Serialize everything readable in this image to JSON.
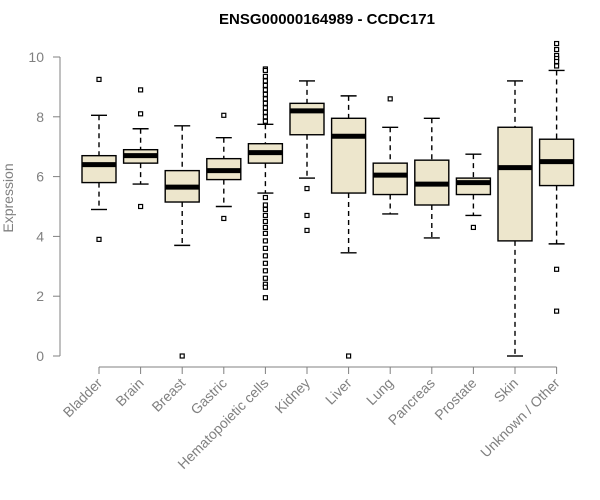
{
  "chart_data": {
    "type": "boxplot",
    "title": "ENSG00000164989 - CCDC171",
    "ylabel": "Expression",
    "xlabel": "",
    "ylim": [
      0,
      10.5
    ],
    "yticks": [
      0,
      2,
      4,
      6,
      8,
      10
    ],
    "colors": {
      "box_fill": "#ede6cc",
      "box_stroke": "#000000",
      "axis": "#808080"
    },
    "categories": [
      "Bladder",
      "Brain",
      "Breast",
      "Gastric",
      "Hematopoietic cells",
      "Kidney",
      "Liver",
      "Lung",
      "Pancreas",
      "Prostate",
      "Skin",
      "Unknown / Other"
    ],
    "boxes": [
      {
        "category": "Bladder",
        "min": 4.9,
        "q1": 5.8,
        "median": 6.4,
        "q3": 6.7,
        "max": 8.05,
        "outliers": [
          9.25,
          3.9
        ]
      },
      {
        "category": "Brain",
        "min": 5.75,
        "q1": 6.45,
        "median": 6.7,
        "q3": 6.9,
        "max": 7.6,
        "outliers": [
          8.9,
          8.1,
          5.0
        ]
      },
      {
        "category": "Breast",
        "min": 3.7,
        "q1": 5.15,
        "median": 5.65,
        "q3": 6.2,
        "max": 7.7,
        "outliers": [
          0.0
        ]
      },
      {
        "category": "Gastric",
        "min": 5.0,
        "q1": 5.9,
        "median": 6.2,
        "q3": 6.6,
        "max": 7.3,
        "outliers": [
          8.05,
          4.6
        ]
      },
      {
        "category": "Hematopoietic cells",
        "min": 5.45,
        "q1": 6.45,
        "median": 6.8,
        "q3": 7.1,
        "max": 7.75,
        "outliers": [
          9.6,
          9.55,
          9.35,
          9.2,
          9.05,
          8.9,
          8.75,
          8.6,
          8.45,
          8.3,
          8.15,
          8.0,
          7.85,
          5.3,
          5.05,
          4.9,
          4.7,
          4.5,
          4.3,
          4.1,
          3.85,
          3.6,
          3.35,
          3.1,
          2.85,
          2.6,
          2.4,
          2.3,
          1.95
        ]
      },
      {
        "category": "Kidney",
        "min": 5.95,
        "q1": 7.4,
        "median": 8.2,
        "q3": 8.45,
        "max": 9.2,
        "outliers": [
          5.6,
          4.7,
          4.2
        ]
      },
      {
        "category": "Liver",
        "min": 3.45,
        "q1": 5.45,
        "median": 7.35,
        "q3": 7.95,
        "max": 8.7,
        "outliers": [
          0.0
        ]
      },
      {
        "category": "Lung",
        "min": 4.75,
        "q1": 5.4,
        "median": 6.05,
        "q3": 6.45,
        "max": 7.65,
        "outliers": [
          8.6
        ]
      },
      {
        "category": "Pancreas",
        "min": 3.95,
        "q1": 5.05,
        "median": 5.75,
        "q3": 6.55,
        "max": 7.95,
        "outliers": []
      },
      {
        "category": "Prostate",
        "min": 4.7,
        "q1": 5.4,
        "median": 5.8,
        "q3": 5.95,
        "max": 6.75,
        "outliers": [
          4.3
        ]
      },
      {
        "category": "Skin",
        "min": 0.0,
        "q1": 3.85,
        "median": 6.3,
        "q3": 7.65,
        "max": 9.2,
        "outliers": []
      },
      {
        "category": "Unknown / Other",
        "min": 3.75,
        "q1": 5.7,
        "median": 6.5,
        "q3": 7.25,
        "max": 9.55,
        "outliers": [
          10.45,
          10.25,
          10.05,
          9.95,
          9.85,
          9.7,
          2.9,
          1.5
        ]
      }
    ]
  }
}
